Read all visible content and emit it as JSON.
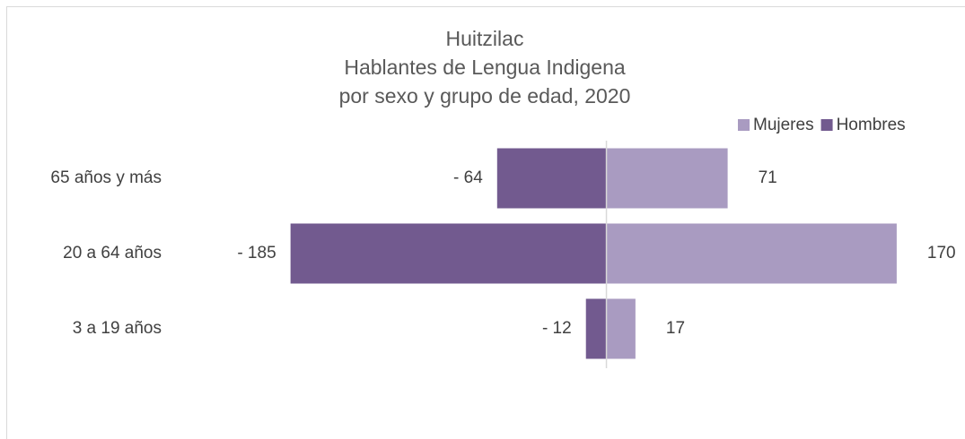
{
  "chart_data": {
    "type": "bar",
    "orientation": "horizontal",
    "title": [
      "Huitzilac",
      "Hablantes de Lengua Indigena",
      "por sexo y grupo de edad, 2020"
    ],
    "categories": [
      "65 años y más",
      "20 a 64 años",
      "3 a 19 años"
    ],
    "series": [
      {
        "name": "Mujeres",
        "color": "#a99bc1",
        "values": [
          71,
          170,
          17
        ]
      },
      {
        "name": "Hombres",
        "color": "#725a8f",
        "values": [
          -64,
          -185,
          -12
        ],
        "value_labels": [
          "- 64",
          "- 185",
          "- 12"
        ]
      }
    ],
    "xlim": [
      -250,
      210
    ],
    "legend": "top-right",
    "grid": false
  }
}
